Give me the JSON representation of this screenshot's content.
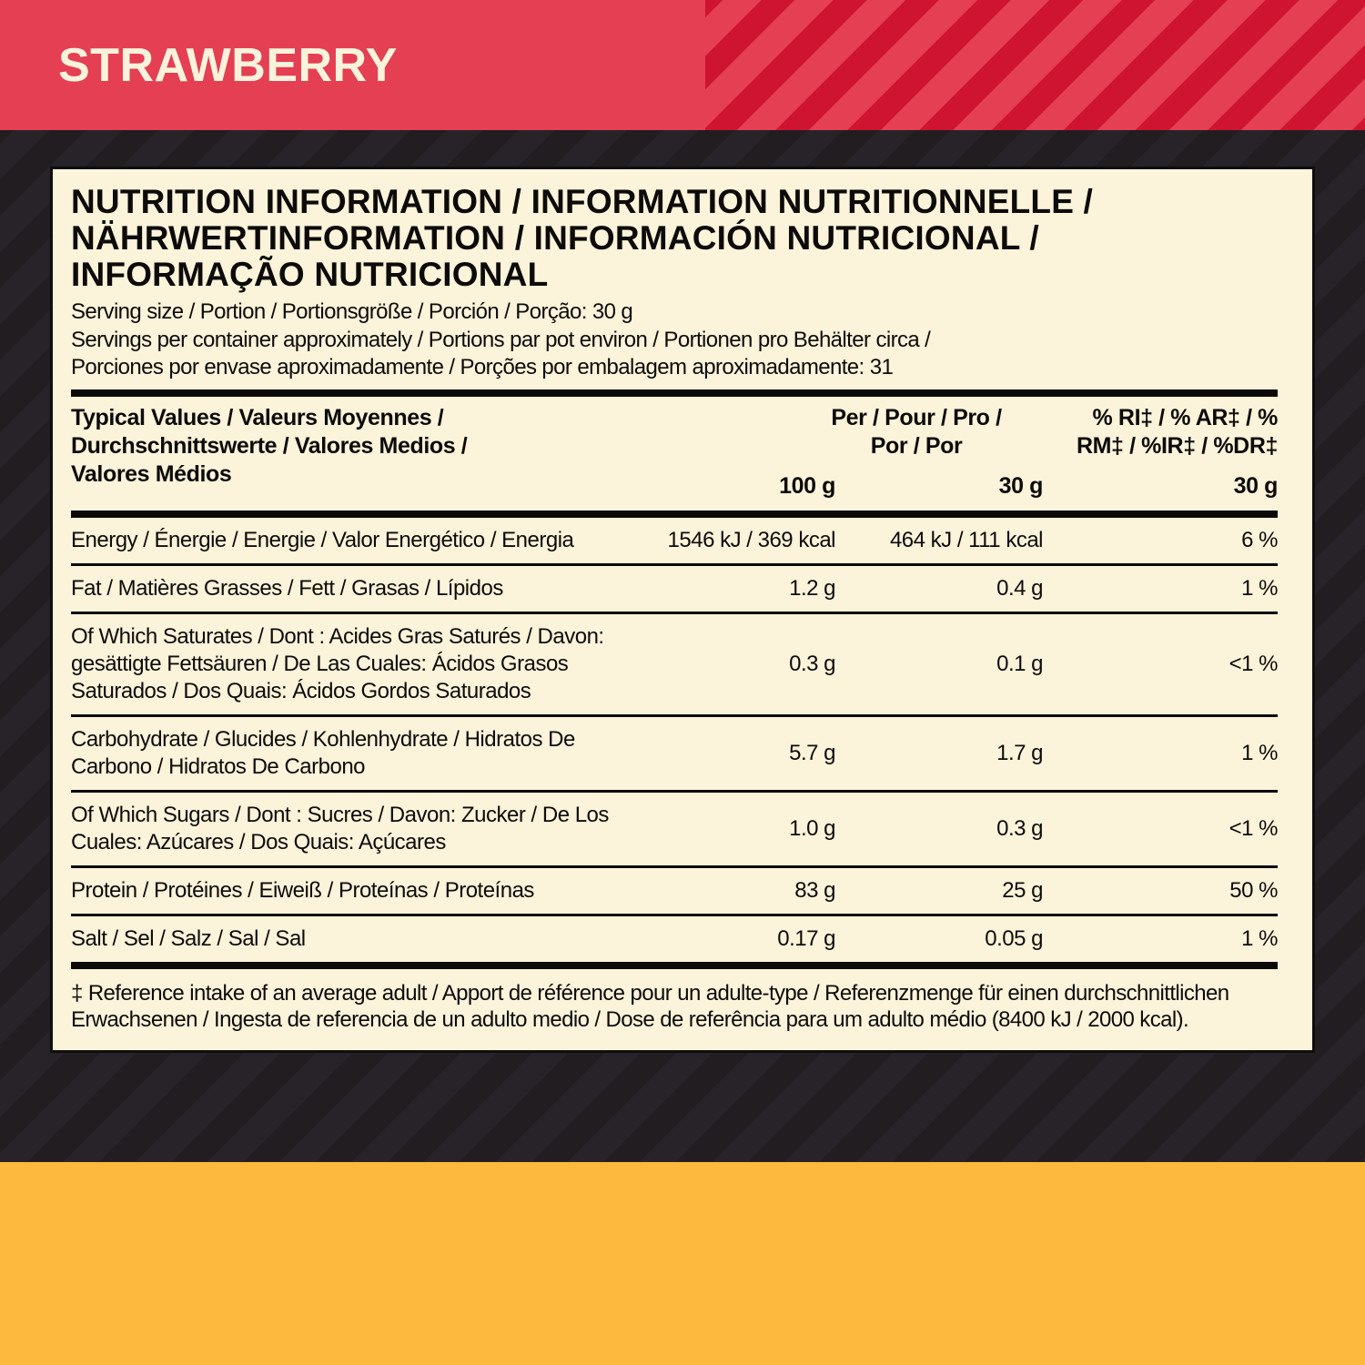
{
  "banner": {
    "flavor": "STRAWBERRY"
  },
  "panel": {
    "title_lines": [
      "NUTRITION INFORMATION / INFORMATION NUTRITIONNELLE /",
      "NÄHRWERTINFORMATION / INFORMACIÓN NUTRICIONAL /",
      "INFORMAÇÃO NUTRICIONAL"
    ],
    "serving_lines": [
      "Serving size / Portion / Portionsgröße / Porción / Porção: 30 g",
      "Servings per container approximately / Portions par pot environ / Portionen pro Behälter circa /",
      "Porciones por envase aproximadamente / Porções por embalagem aproximadamente: 31"
    ],
    "table": {
      "header": {
        "label_lines": [
          "Typical Values / Valeurs Moyennes /",
          "Durchschnittswerte / Valores Medios /",
          "Valores Médios"
        ],
        "per_lines": [
          "Per / Pour / Pro /",
          "Por / Por"
        ],
        "ri_lines": [
          "% RI‡ / % AR‡ / %",
          "RM‡ / %IR‡ / %DR‡"
        ],
        "col_units": [
          "100 g",
          "30 g",
          "30 g"
        ]
      },
      "rows": [
        {
          "label": "Energy / Énergie / Energie / Valor Energético / Energia",
          "per100": "1546 kJ / 369 kcal",
          "per30": "464 kJ / 111 kcal",
          "ri": "6 %"
        },
        {
          "label": "Fat / Matières Grasses / Fett / Grasas / Lípidos",
          "per100": "1.2 g",
          "per30": "0.4 g",
          "ri": "1 %"
        },
        {
          "label": "Of Which Saturates / Dont : Acides Gras Saturés / Davon: gesättigte Fettsäuren / De Las Cuales: Ácidos Grasos Saturados / Dos Quais: Ácidos Gordos Saturados",
          "per100": "0.3 g",
          "per30": "0.1 g",
          "ri": "<1 %"
        },
        {
          "label": "Carbohydrate / Glucides / Kohlenhydrate / Hidratos De Carbono / Hidratos De Carbono",
          "per100": "5.7 g",
          "per30": "1.7 g",
          "ri": "1 %"
        },
        {
          "label": "Of Which Sugars / Dont : Sucres / Davon: Zucker / De Los Cuales: Azúcares / Dos Quais: Açúcares",
          "per100": "1.0 g",
          "per30": "0.3 g",
          "ri": "<1 %"
        },
        {
          "label": "Protein / Protéines / Eiweiß / Proteínas / Proteínas",
          "per100": "83 g",
          "per30": "25 g",
          "ri": "50 %"
        },
        {
          "label": "Salt / Sel / Salz / Sal / Sal",
          "per100": "0.17 g",
          "per30": "0.05 g",
          "ri": "1 %"
        }
      ]
    },
    "footnote": "‡ Reference intake of an average adult / Apport de référence pour un adulte-type / Referenzmenge für einen durchschnittlichen Erwachsenen /  Ingesta de referencia de un adulto medio / Dose de referência para um adulto médio (8400 kJ / 2000 kcal)."
  },
  "colors": {
    "banner_red": "#e43f53",
    "banner_stripe_red": "#ce1430",
    "background_dark": "#211d21",
    "background_stripe_dark": "#272329",
    "panel_cream": "#fbf3da",
    "bottom_yellow": "#fcb93e",
    "text_black": "#0d0b09"
  }
}
